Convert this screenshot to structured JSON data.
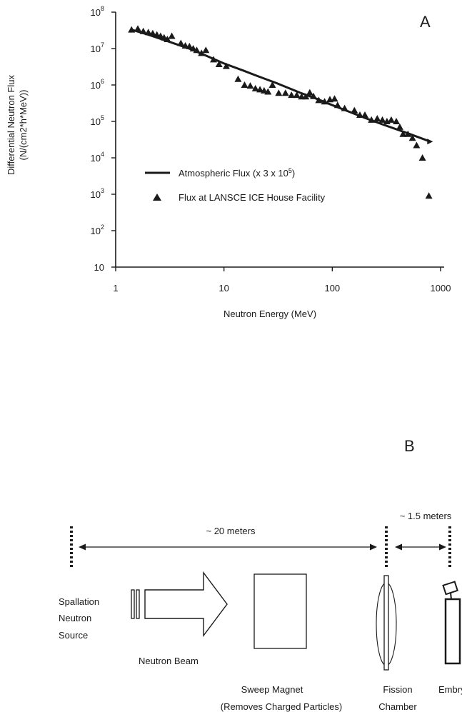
{
  "chart_data": {
    "type": "scatter",
    "panel_label": "A",
    "xlabel": "Neutron Energy (MeV)",
    "ylabel_line1": "Differential Neutron Flux",
    "ylabel_line2": "(N/(cm2*h*MeV))",
    "x_scale": "log",
    "y_scale": "log",
    "xlim": [
      1,
      1000
    ],
    "ylim": [
      10,
      100000000
    ],
    "x_ticks": [
      {
        "value": 1,
        "label": "1"
      },
      {
        "value": 10,
        "label": "10"
      },
      {
        "value": 100,
        "label": "100"
      },
      {
        "value": 1000,
        "label": "1000"
      }
    ],
    "y_ticks": [
      {
        "value": 10,
        "base": "10",
        "exp": ""
      },
      {
        "value": 100,
        "base": "10",
        "exp": "2"
      },
      {
        "value": 1000,
        "base": "10",
        "exp": "3"
      },
      {
        "value": 10000,
        "base": "10",
        "exp": "4"
      },
      {
        "value": 100000,
        "base": "10",
        "exp": "5"
      },
      {
        "value": 1000000,
        "base": "10",
        "exp": "6"
      },
      {
        "value": 10000000,
        "base": "10",
        "exp": "7"
      },
      {
        "value": 100000000,
        "base": "10",
        "exp": "8"
      }
    ],
    "grid": false,
    "legend_position": "lower-left",
    "series": [
      {
        "name": "Atmospheric Flux (x 3 x 10",
        "name_superscript": "5",
        "name_suffix": ")",
        "style": "line",
        "x": [
          1.4,
          2,
          3,
          5,
          7,
          10,
          15,
          20,
          30,
          50,
          70,
          100,
          150,
          200,
          300,
          500,
          800
        ],
        "y": [
          33000000,
          24000000,
          16000000,
          9500000,
          6200000,
          3900000,
          2500000,
          1800000,
          1150000,
          620000,
          430000,
          280000,
          175000,
          125000,
          80000,
          47000,
          28000
        ]
      },
      {
        "name": "Flux at LANSCE ICE House Facility",
        "style": "triangle-markers",
        "x": [
          1.4,
          1.6,
          1.8,
          2.0,
          2.2,
          2.4,
          2.6,
          2.8,
          3.0,
          3.3,
          4.0,
          4.4,
          4.8,
          5.2,
          5.6,
          6.2,
          6.8,
          8.0,
          9.0,
          10.5,
          13.5,
          15.5,
          17.5,
          19.5,
          21.5,
          23.5,
          25.5,
          28,
          32,
          37,
          42,
          47,
          52,
          57,
          62,
          67,
          75,
          85,
          95,
          105,
          112,
          130,
          160,
          180,
          200,
          230,
          260,
          290,
          320,
          350,
          390,
          420,
          450,
          500,
          550,
          600,
          680,
          780
        ],
        "y": [
          33000000,
          35000000,
          30000000,
          28000000,
          26000000,
          24000000,
          22000000,
          20000000,
          18000000,
          22000000,
          14000000,
          12000000,
          11500000,
          10000000,
          9000000,
          7500000,
          9000000,
          5000000,
          3700000,
          3300000,
          1450000,
          1000000,
          950000,
          800000,
          750000,
          700000,
          650000,
          1000000,
          600000,
          600000,
          530000,
          530000,
          480000,
          480000,
          620000,
          490000,
          380000,
          350000,
          400000,
          420000,
          280000,
          230000,
          200000,
          150000,
          150000,
          110000,
          120000,
          110000,
          100000,
          110000,
          100000,
          70000,
          45000,
          45000,
          35000,
          22000,
          10000,
          900
        ]
      }
    ]
  },
  "diagram": {
    "panel_label": "B",
    "distance_long": "~ 20 meters",
    "distance_short": "~ 1.5 meters",
    "source_line1": "Spallation",
    "source_line2": "Neutron",
    "source_line3": "Source",
    "beam_label": "Neutron Beam",
    "magnet_line1": "Sweep Magnet",
    "magnet_line2": "(Removes Charged Particles)",
    "fission_line1": "Fission",
    "fission_line2": "Chamber",
    "embryo_label": "Embryo I"
  }
}
